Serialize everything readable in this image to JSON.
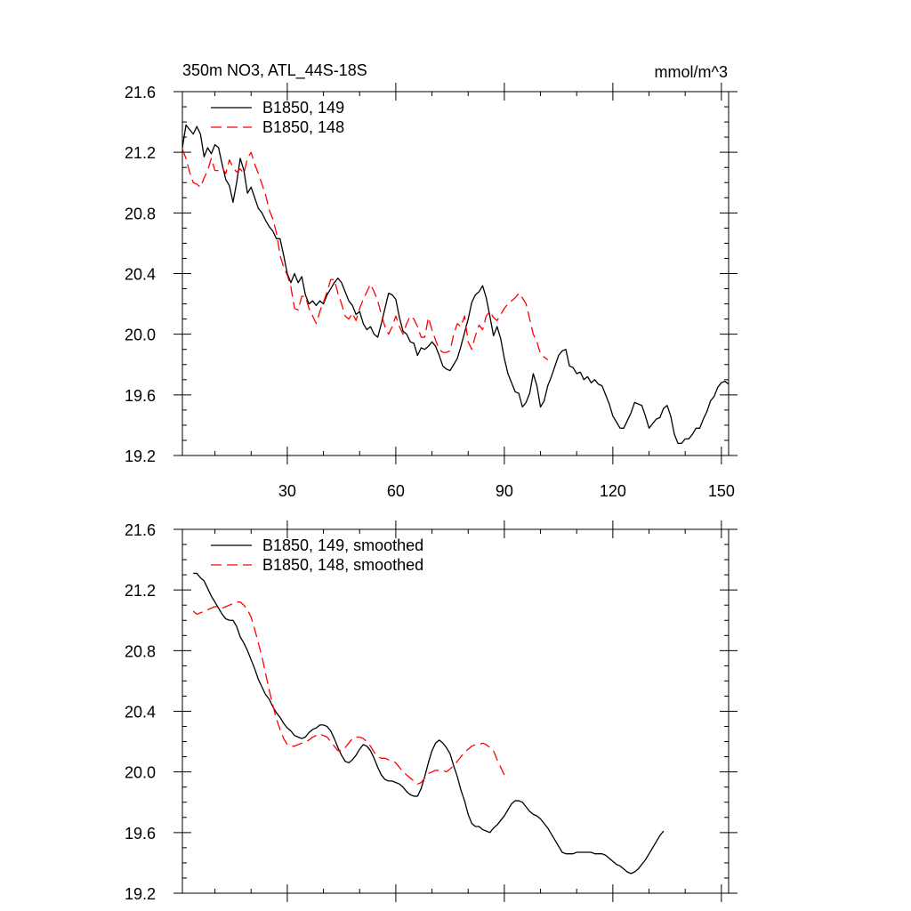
{
  "chart_data": [
    {
      "type": "line",
      "title": "350m NO3, ATL_44S-18S",
      "units": "mmol/m^3",
      "xlim": [
        1,
        152
      ],
      "ylim": [
        19.2,
        21.6
      ],
      "yticks": [
        19.2,
        19.6,
        20.0,
        20.4,
        20.8,
        21.2,
        21.6
      ],
      "ytick_labels": [
        "19.2",
        "19.6",
        "20.0",
        "20.4",
        "20.8",
        "21.2",
        "21.6"
      ],
      "xticks": [
        30,
        60,
        90,
        120,
        150
      ],
      "xtick_labels": [
        "30",
        "60",
        "90",
        "120",
        "150"
      ],
      "legend": "top-left",
      "series": [
        {
          "name": "B1850, 149",
          "color": "#000000",
          "dash": "solid",
          "x_start": 1,
          "values": [
            21.23,
            21.38,
            21.35,
            21.32,
            21.37,
            21.32,
            21.17,
            21.23,
            21.19,
            21.25,
            21.23,
            21.12,
            21.02,
            20.98,
            20.87,
            21.0,
            21.16,
            21.08,
            20.93,
            20.97,
            20.9,
            20.83,
            20.8,
            20.75,
            20.71,
            20.68,
            20.63,
            20.63,
            20.52,
            20.4,
            20.34,
            20.4,
            20.34,
            20.38,
            20.26,
            20.2,
            20.22,
            20.19,
            20.22,
            20.2,
            20.26,
            20.3,
            20.34,
            20.37,
            20.34,
            20.28,
            20.22,
            20.19,
            20.13,
            20.15,
            20.07,
            20.03,
            20.05,
            20.0,
            19.98,
            20.07,
            20.17,
            20.27,
            20.26,
            20.23,
            20.11,
            20.02,
            20.0,
            19.95,
            19.94,
            19.86,
            19.91,
            19.9,
            19.92,
            19.95,
            19.92,
            19.86,
            19.79,
            19.77,
            19.76,
            19.8,
            19.84,
            19.92,
            20.01,
            20.1,
            20.21,
            20.26,
            20.28,
            20.32,
            20.24,
            20.12,
            19.99,
            20.05,
            19.97,
            19.84,
            19.74,
            19.68,
            19.62,
            19.61,
            19.52,
            19.55,
            19.61,
            19.74,
            19.66,
            19.52,
            19.56,
            19.66,
            19.72,
            19.79,
            19.86,
            19.89,
            19.9,
            19.79,
            19.78,
            19.74,
            19.75,
            19.7,
            19.72,
            19.68,
            19.7,
            19.67,
            19.66,
            19.6,
            19.54,
            19.46,
            19.42,
            19.38,
            19.38,
            19.43,
            19.48,
            19.55,
            19.54,
            19.53,
            19.46,
            19.38,
            19.41,
            19.44,
            19.45,
            19.51,
            19.53,
            19.46,
            19.34,
            19.28,
            19.28,
            19.31,
            19.31,
            19.34,
            19.38,
            19.38,
            19.44,
            19.49,
            19.56,
            19.59,
            19.65,
            19.68,
            19.69,
            19.67
          ]
        },
        {
          "name": "B1850, 148",
          "color": "#ff0000",
          "dash": "dashed",
          "x_start": 1,
          "values": [
            21.22,
            21.16,
            21.07,
            21.0,
            20.99,
            20.97,
            21.03,
            21.08,
            21.16,
            21.08,
            21.08,
            21.1,
            21.06,
            21.15,
            21.1,
            21.07,
            21.09,
            21.06,
            21.16,
            21.2,
            21.12,
            21.06,
            20.99,
            20.92,
            20.82,
            20.76,
            20.67,
            20.52,
            20.44,
            20.39,
            20.31,
            20.17,
            20.16,
            20.25,
            20.25,
            20.17,
            20.12,
            20.07,
            20.15,
            20.21,
            20.28,
            20.36,
            20.36,
            20.27,
            20.2,
            20.12,
            20.1,
            20.14,
            20.09,
            20.17,
            20.23,
            20.28,
            20.33,
            20.28,
            20.22,
            20.13,
            20.05,
            20.0,
            20.05,
            20.12,
            20.05,
            20.0,
            20.07,
            20.12,
            20.1,
            20.05,
            19.98,
            19.98,
            20.11,
            20.03,
            19.96,
            19.9,
            19.88,
            19.88,
            19.89,
            20.0,
            20.07,
            20.05,
            20.12,
            19.95,
            19.9,
            19.99,
            20.06,
            20.03,
            20.12,
            20.15,
            20.11,
            20.09,
            20.13,
            20.17,
            20.2,
            20.22,
            20.24,
            20.27,
            20.24,
            20.2,
            20.1,
            20.0,
            19.95,
            19.87,
            19.85,
            19.83
          ]
        }
      ]
    },
    {
      "type": "line",
      "title": "",
      "xlim": [
        1,
        152
      ],
      "ylim": [
        19.2,
        21.6
      ],
      "yticks": [
        19.2,
        19.6,
        20.0,
        20.4,
        20.8,
        21.2,
        21.6
      ],
      "ytick_labels": [
        "19.2",
        "19.6",
        "20.0",
        "20.4",
        "20.8",
        "21.2",
        "21.6"
      ],
      "xticks": [
        30,
        60,
        90,
        120,
        150
      ],
      "legend": "top-left",
      "series": [
        {
          "name": "B1850, 149, smoothed",
          "color": "#000000",
          "dash": "solid",
          "x_start": 4,
          "values": [
            21.31,
            21.31,
            21.28,
            21.26,
            21.21,
            21.16,
            21.12,
            21.08,
            21.04,
            21.01,
            21.0,
            21.0,
            20.96,
            20.89,
            20.85,
            20.8,
            20.74,
            20.68,
            20.61,
            20.56,
            20.51,
            20.48,
            20.43,
            20.39,
            20.36,
            20.32,
            20.29,
            20.27,
            20.24,
            20.23,
            20.22,
            20.23,
            20.26,
            20.28,
            20.29,
            20.31,
            20.31,
            20.3,
            20.27,
            20.22,
            20.16,
            20.11,
            20.07,
            20.06,
            20.08,
            20.11,
            20.15,
            20.18,
            20.17,
            20.14,
            20.09,
            20.03,
            19.98,
            19.95,
            19.94,
            19.94,
            19.93,
            19.92,
            19.9,
            19.87,
            19.85,
            19.84,
            19.84,
            19.89,
            19.97,
            20.06,
            20.14,
            20.19,
            20.21,
            20.19,
            20.16,
            20.12,
            20.04,
            19.97,
            19.88,
            19.81,
            19.72,
            19.66,
            19.64,
            19.64,
            19.62,
            19.61,
            19.6,
            19.63,
            19.65,
            19.68,
            19.71,
            19.75,
            19.79,
            19.81,
            19.81,
            19.8,
            19.77,
            19.74,
            19.72,
            19.71,
            19.69,
            19.66,
            19.63,
            19.59,
            19.55,
            19.51,
            19.47,
            19.46,
            19.46,
            19.46,
            19.47,
            19.47,
            19.47,
            19.47,
            19.47,
            19.46,
            19.46,
            19.46,
            19.45,
            19.43,
            19.41,
            19.39,
            19.38,
            19.36,
            19.34,
            19.33,
            19.34,
            19.36,
            19.39,
            19.42,
            19.46,
            19.5,
            19.54,
            19.58,
            19.61
          ]
        },
        {
          "name": "B1850, 148, smoothed",
          "color": "#ff0000",
          "dash": "dashed",
          "x_start": 4,
          "values": [
            21.06,
            21.04,
            21.05,
            21.06,
            21.07,
            21.08,
            21.09,
            21.09,
            21.08,
            21.09,
            21.1,
            21.11,
            21.12,
            21.12,
            21.1,
            21.07,
            21.02,
            20.94,
            20.85,
            20.76,
            20.65,
            20.54,
            20.44,
            20.35,
            20.28,
            20.22,
            20.18,
            20.17,
            20.17,
            20.18,
            20.19,
            20.2,
            20.21,
            20.23,
            20.24,
            20.25,
            20.24,
            20.23,
            20.2,
            20.17,
            20.14,
            20.14,
            20.16,
            20.19,
            20.22,
            20.23,
            20.23,
            20.22,
            20.2,
            20.17,
            20.13,
            20.1,
            20.09,
            20.09,
            20.08,
            20.07,
            20.06,
            20.03,
            20.0,
            19.98,
            19.96,
            19.94,
            19.92,
            19.93,
            19.96,
            19.99,
            20.0,
            20.01,
            20.01,
            20.01,
            20.0,
            20.02,
            20.04,
            20.07,
            20.1,
            20.13,
            20.15,
            20.17,
            20.18,
            20.18,
            20.19,
            20.18,
            20.16,
            20.14,
            20.08,
            20.03,
            19.98
          ]
        }
      ]
    }
  ]
}
